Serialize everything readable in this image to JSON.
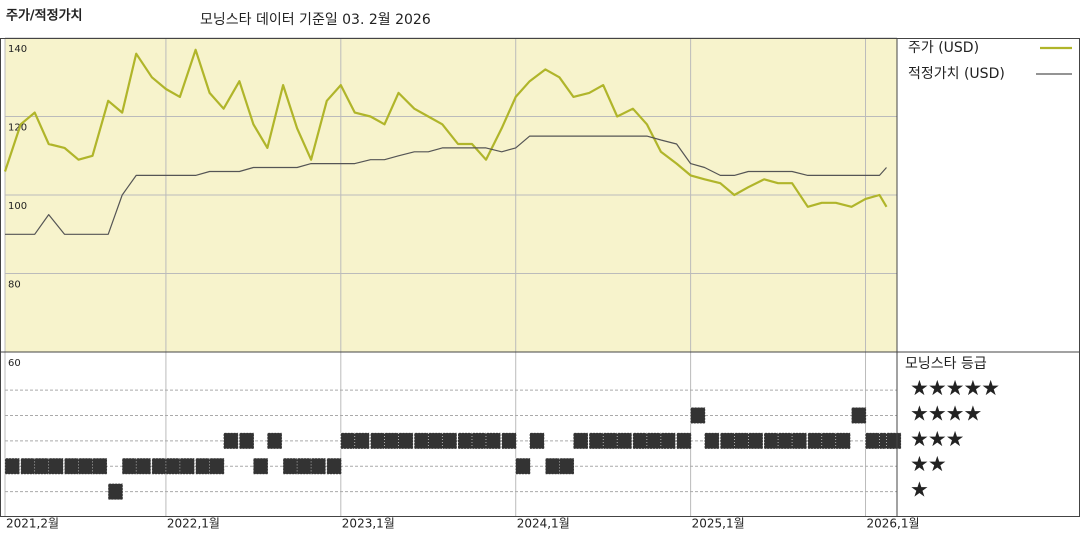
{
  "chart_data": [
    {
      "type": "line",
      "title": "주가/적정가치",
      "subtitle": "모닝스타 데이터 기준일 03. 2월 2026",
      "x": [
        2021.08,
        2021.17,
        2021.25,
        2021.33,
        2021.42,
        2021.5,
        2021.58,
        2021.67,
        2021.75,
        2021.83,
        2021.92,
        2022,
        2022.08,
        2022.17,
        2022.25,
        2022.33,
        2022.42,
        2022.5,
        2022.58,
        2022.67,
        2022.75,
        2022.83,
        2022.92,
        2023,
        2023.08,
        2023.17,
        2023.25,
        2023.33,
        2023.42,
        2023.5,
        2023.58,
        2023.67,
        2023.75,
        2023.83,
        2023.92,
        2024,
        2024.08,
        2024.17,
        2024.25,
        2024.33,
        2024.42,
        2024.5,
        2024.58,
        2024.67,
        2024.75,
        2024.83,
        2024.92,
        2025,
        2025.08,
        2025.17,
        2025.25,
        2025.33,
        2025.42,
        2025.5,
        2025.58,
        2025.67,
        2025.75,
        2025.83,
        2025.92,
        2026,
        2026.08,
        2026.12
      ],
      "series": [
        {
          "name": "주가 (USD)",
          "color": "#b0b52a",
          "width": 2.2,
          "values": [
            106,
            118,
            121,
            113,
            112,
            109,
            110,
            124,
            121,
            136,
            130,
            127,
            125,
            137,
            126,
            122,
            129,
            118,
            112,
            128,
            117,
            109,
            124,
            128,
            121,
            120,
            118,
            126,
            122,
            120,
            118,
            113,
            113,
            109,
            117,
            125,
            129,
            132,
            130,
            125,
            126,
            128,
            120,
            122,
            118,
            111,
            108,
            105,
            104,
            103,
            100,
            102,
            104,
            103,
            103,
            97,
            98,
            98,
            97,
            99,
            100,
            97
          ]
        },
        {
          "name": "적정가치 (USD)",
          "color": "#555555",
          "width": 1.2,
          "values": [
            90,
            90,
            90,
            95,
            90,
            90,
            90,
            90,
            100,
            105,
            105,
            105,
            105,
            105,
            106,
            106,
            106,
            107,
            107,
            107,
            107,
            108,
            108,
            108,
            108,
            109,
            109,
            110,
            111,
            111,
            112,
            112,
            112,
            112,
            111,
            112,
            115,
            115,
            115,
            115,
            115,
            115,
            115,
            115,
            115,
            114,
            113,
            108,
            107,
            105,
            105,
            106,
            106,
            106,
            106,
            105,
            105,
            105,
            105,
            105,
            105,
            107
          ]
        }
      ],
      "xlim": [
        2021.08,
        2026.18
      ],
      "xticks": [
        {
          "value": 2021.08,
          "label": "2021,2월"
        },
        {
          "value": 2022,
          "label": "2022,1월"
        },
        {
          "value": 2023,
          "label": "2023,1월"
        },
        {
          "value": 2024,
          "label": "2024,1월"
        },
        {
          "value": 2025,
          "label": "2025,1월"
        },
        {
          "value": 2026,
          "label": "2026,1월"
        }
      ],
      "ylim": [
        60,
        140
      ],
      "yticks": [
        60,
        80,
        100,
        120,
        140
      ],
      "grid": true,
      "background": "#f7f3cc"
    },
    {
      "type": "rating",
      "title": "모닝스타 등급",
      "color": "#333333",
      "x": [
        2021.08,
        2021.17,
        2021.25,
        2021.33,
        2021.42,
        2021.5,
        2021.58,
        2021.67,
        2021.75,
        2021.83,
        2021.92,
        2022,
        2022.08,
        2022.17,
        2022.25,
        2022.33,
        2022.42,
        2022.5,
        2022.58,
        2022.67,
        2022.75,
        2022.83,
        2022.92,
        2023,
        2023.08,
        2023.17,
        2023.25,
        2023.33,
        2023.42,
        2023.5,
        2023.58,
        2023.67,
        2023.75,
        2023.83,
        2023.92,
        2024,
        2024.08,
        2024.17,
        2024.25,
        2024.33,
        2024.42,
        2024.5,
        2024.58,
        2024.67,
        2024.75,
        2024.83,
        2024.92,
        2025,
        2025.08,
        2025.17,
        2025.25,
        2025.33,
        2025.42,
        2025.5,
        2025.58,
        2025.67,
        2025.75,
        2025.83,
        2025.92,
        2026,
        2026.08,
        2026.12
      ],
      "values": [
        2,
        2,
        2,
        2,
        2,
        2,
        2,
        1,
        2,
        2,
        2,
        2,
        2,
        2,
        2,
        3,
        3,
        2,
        3,
        2,
        2,
        2,
        2,
        3,
        3,
        3,
        3,
        3,
        3,
        3,
        3,
        3,
        3,
        3,
        3,
        2,
        3,
        2,
        2,
        3,
        3,
        3,
        3,
        3,
        3,
        3,
        3,
        4,
        3,
        3,
        3,
        3,
        3,
        3,
        3,
        3,
        3,
        3,
        4,
        3,
        3,
        3
      ],
      "ylim": [
        0,
        6.5
      ],
      "yticks": [
        {
          "value": 5,
          "label": "★★★★★"
        },
        {
          "value": 4,
          "label": "★★★★"
        },
        {
          "value": 3,
          "label": "★★★"
        },
        {
          "value": 2,
          "label": "★★"
        },
        {
          "value": 1,
          "label": "★"
        }
      ]
    }
  ]
}
